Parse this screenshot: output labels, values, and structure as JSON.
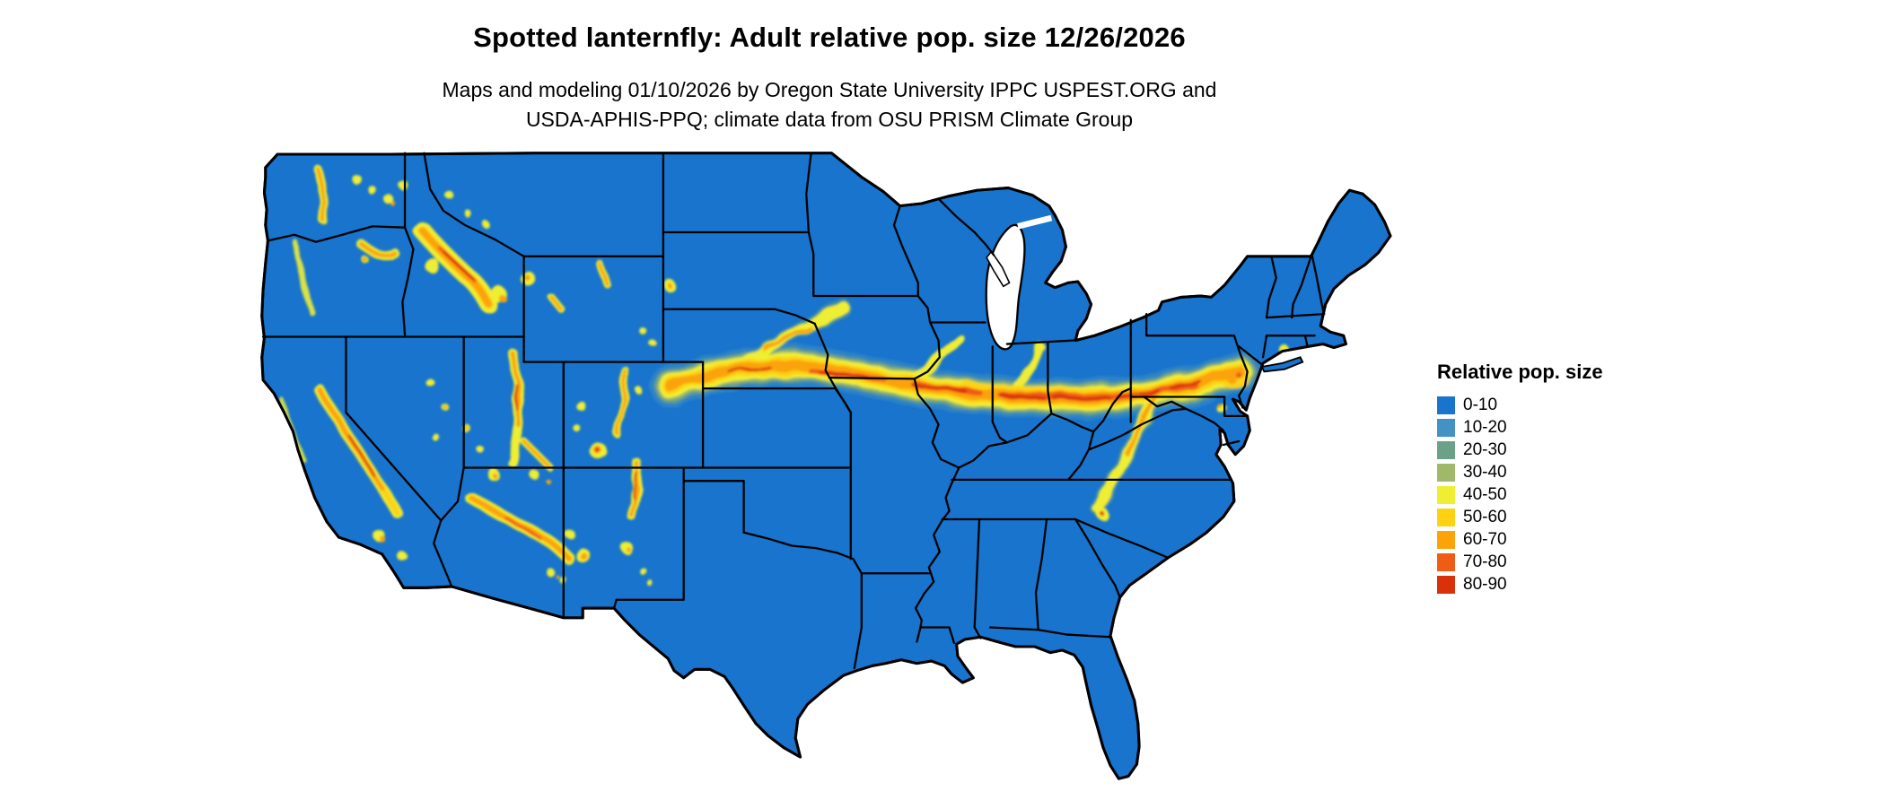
{
  "header": {
    "title": "Spotted lanternfly: Adult relative pop. size 12/26/2026",
    "subtitle_line1": "Maps and modeling 01/10/2026 by Oregon State University IPPC USPEST.ORG and",
    "subtitle_line2": "USDA-APHIS-PPQ; climate data from OSU PRISM Climate Group"
  },
  "legend": {
    "title": "Relative pop. size",
    "items": [
      {
        "label": "0-10",
        "color": "#1874cd"
      },
      {
        "label": "10-20",
        "color": "#4492c3"
      },
      {
        "label": "20-30",
        "color": "#6ba287"
      },
      {
        "label": "30-40",
        "color": "#a0b86a"
      },
      {
        "label": "40-50",
        "color": "#f0ee33"
      },
      {
        "label": "50-60",
        "color": "#fdd212"
      },
      {
        "label": "60-70",
        "color": "#fba308"
      },
      {
        "label": "70-80",
        "color": "#ef5c16"
      },
      {
        "label": "80-90",
        "color": "#d9310a"
      }
    ]
  },
  "map": {
    "region": "Continental United States",
    "land_color": "#1874cd",
    "water_color": "#ffffff",
    "state_border_color": "#000000",
    "high_population_corridor": "Band from Nebraska through Iowa, Illinois, Indiana, Ohio and Pennsylvania to New Jersey/Maryland",
    "western_hotspots": [
      "Washington Cascades and Blue Mountains",
      "Central Idaho mountains",
      "Sierra Nevada (California)",
      "Wasatch Range and plateaus (Utah)",
      "Mogollon Rim (Arizona)",
      "Southern Rocky Mountains (Colorado, New Mexico)",
      "Appalachians (West Virginia, Virginia, North Carolina)"
    ]
  }
}
